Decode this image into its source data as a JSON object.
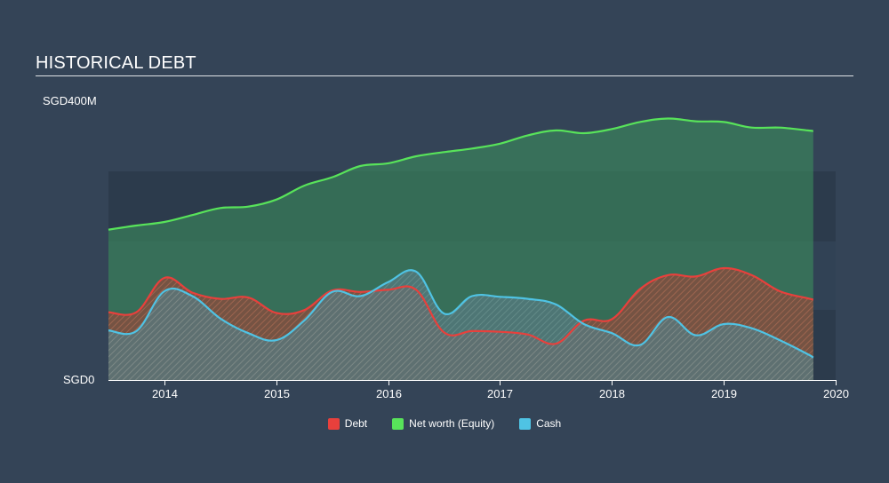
{
  "chart_data": {
    "type": "area",
    "title": "HISTORICAL DEBT",
    "currency": "SGD",
    "ylim": [
      0,
      400
    ],
    "y_ticks": [
      {
        "value": 400,
        "label": "SGD400M"
      },
      {
        "value": 0,
        "label": "SGD0"
      }
    ],
    "xlim": [
      2013.5,
      2020.0
    ],
    "x_ticks": [
      {
        "value": 2014,
        "label": "2014"
      },
      {
        "value": 2015,
        "label": "2015"
      },
      {
        "value": 2016,
        "label": "2016"
      },
      {
        "value": 2017,
        "label": "2017"
      },
      {
        "value": 2018,
        "label": "2018"
      },
      {
        "value": 2019,
        "label": "2019"
      },
      {
        "value": 2020,
        "label": "2020"
      }
    ],
    "series": [
      {
        "name": "Net worth (Equity)",
        "color": "#58e35a",
        "x": [
          2013.5,
          2013.75,
          2014.0,
          2014.25,
          2014.5,
          2014.75,
          2015.0,
          2015.25,
          2015.5,
          2015.75,
          2016.0,
          2016.25,
          2016.5,
          2016.75,
          2017.0,
          2017.25,
          2017.5,
          2017.75,
          2018.0,
          2018.25,
          2018.5,
          2018.75,
          2019.0,
          2019.25,
          2019.5,
          2019.75,
          2019.8
        ],
        "values": [
          215,
          221,
          226,
          236,
          246,
          248,
          258,
          278,
          290,
          306,
          310,
          320,
          326,
          331,
          338,
          350,
          357,
          353,
          359,
          369,
          374,
          370,
          369,
          361,
          361,
          357,
          356
        ]
      },
      {
        "name": "Debt",
        "color": "#e8403c",
        "x": [
          2013.5,
          2013.75,
          2014.0,
          2014.25,
          2014.5,
          2014.75,
          2015.0,
          2015.25,
          2015.5,
          2015.75,
          2016.0,
          2016.25,
          2016.5,
          2016.75,
          2017.0,
          2017.25,
          2017.5,
          2017.75,
          2018.0,
          2018.25,
          2018.5,
          2018.75,
          2019.0,
          2019.25,
          2019.5,
          2019.75,
          2019.8
        ],
        "values": [
          97,
          97,
          146,
          125,
          116,
          118,
          96,
          100,
          128,
          126,
          129,
          129,
          68,
          70,
          69,
          65,
          52,
          85,
          87,
          130,
          150,
          148,
          160,
          150,
          127,
          117,
          115
        ]
      },
      {
        "name": "Cash",
        "color": "#4fc3e4",
        "x": [
          2013.5,
          2013.75,
          2014.0,
          2014.25,
          2014.5,
          2014.75,
          2015.0,
          2015.25,
          2015.5,
          2015.75,
          2016.0,
          2016.25,
          2016.5,
          2016.75,
          2017.0,
          2017.25,
          2017.5,
          2017.75,
          2018.0,
          2018.25,
          2018.5,
          2018.75,
          2019.0,
          2019.25,
          2019.5,
          2019.75,
          2019.8
        ],
        "values": [
          71,
          70,
          127,
          120,
          88,
          67,
          57,
          85,
          126,
          120,
          140,
          155,
          95,
          120,
          119,
          116,
          108,
          80,
          67,
          50,
          90,
          64,
          80,
          74,
          57,
          37,
          32
        ]
      }
    ],
    "legend_position": "bottom-center",
    "grid": false
  }
}
